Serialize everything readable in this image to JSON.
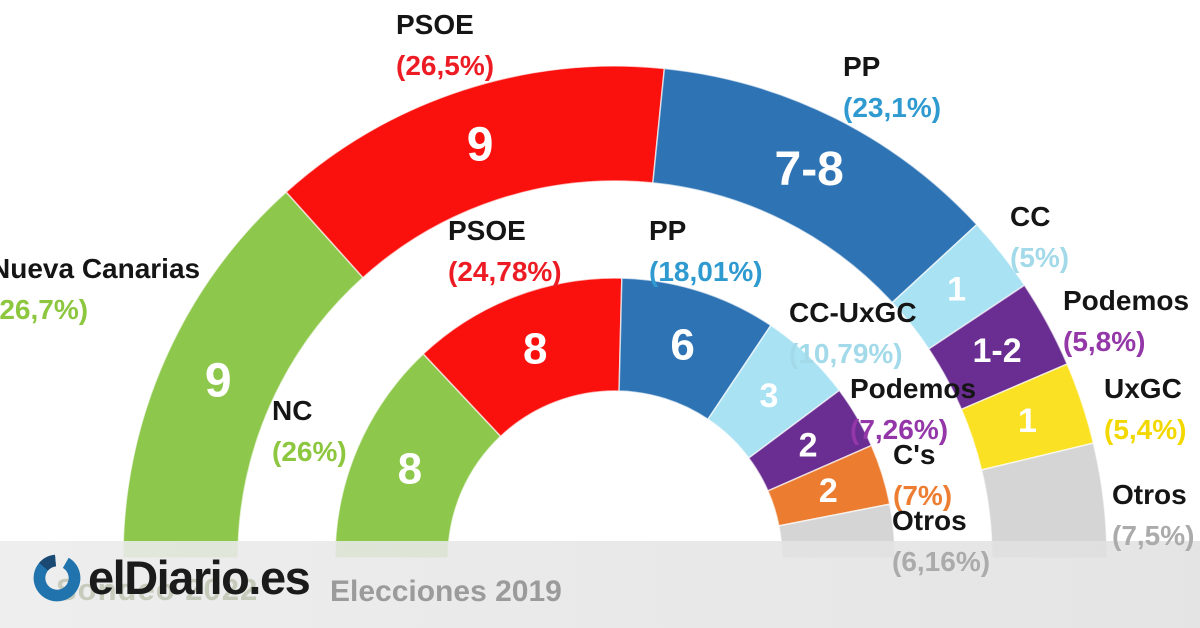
{
  "branding": {
    "logo_text": "elDiario.es",
    "logo_blue": "#2173AE",
    "logo_dark_blue": "#1A4A74",
    "watermark_text": "Sondeo 2022",
    "caption": "Elecciones 2019"
  },
  "chart_data": {
    "type": "pie",
    "subtype": "double_hemicycle_donut",
    "description_visible_text": "Two concentric half-donut rings; outer ring poll result, inner ring Elecciones 2019 result; labels show party, vote share and seats",
    "total_pct": 100,
    "rings": [
      {
        "id": "outer",
        "segments": [
          {
            "label": "Nueva Canarias",
            "pct": 26.7,
            "pct_label": "(26,7%)",
            "seats": "9",
            "color": "#8DC74B",
            "text_color": "#8DC63F"
          },
          {
            "label": "PSOE",
            "pct": 26.5,
            "pct_label": "(26,5%)",
            "seats": "9",
            "color": "#FA100C",
            "text_color": "#ED1C24"
          },
          {
            "label": "PP",
            "pct": 23.1,
            "pct_label": "(23,1%)",
            "seats": "7-8",
            "color": "#2E74B5",
            "text_color": "#2E9AD0"
          },
          {
            "label": "CC",
            "pct": 5.0,
            "pct_label": "(5%)",
            "seats": "1",
            "color": "#A9E2F3",
            "text_color": "#A3DAEA"
          },
          {
            "label": "Podemos",
            "pct": 5.8,
            "pct_label": "(5,8%)",
            "seats": "1-2",
            "color": "#6A2D91",
            "text_color": "#9437A8"
          },
          {
            "label": "UxGC",
            "pct": 5.4,
            "pct_label": "(5,4%)",
            "seats": "1",
            "color": "#FBE124",
            "text_color": "#F3D800"
          },
          {
            "label": "Otros",
            "pct": 7.5,
            "pct_label": "(7,5%)",
            "seats": "",
            "color": "#D5D5D5",
            "text_color": "#ABABAB"
          }
        ]
      },
      {
        "id": "inner",
        "segments": [
          {
            "label": "NC",
            "pct": 26.0,
            "pct_label": "(26%)",
            "seats": "8",
            "color": "#8DC74B",
            "text_color": "#8DC63F"
          },
          {
            "label": "PSOE",
            "pct": 24.78,
            "pct_label": "(24,78%)",
            "seats": "8",
            "color": "#FA100C",
            "text_color": "#ED1C24"
          },
          {
            "label": "PP",
            "pct": 18.01,
            "pct_label": "(18,01%)",
            "seats": "6",
            "color": "#2E74B5",
            "text_color": "#2E9AD0"
          },
          {
            "label": "CC-UxGC",
            "pct": 10.79,
            "pct_label": "(10,79%)",
            "seats": "3",
            "color": "#A9E2F3",
            "text_color": "#A3DAEA"
          },
          {
            "label": "Podemos",
            "pct": 7.26,
            "pct_label": "(7,26%)",
            "seats": "2",
            "color": "#6A2D91",
            "text_color": "#9437A8"
          },
          {
            "label": "C's",
            "pct": 7.0,
            "pct_label": "(7%)",
            "seats": "2",
            "color": "#EC7C30",
            "text_color": "#ED7D31"
          },
          {
            "label": "Otros",
            "pct": 6.16,
            "pct_label": "(6,16%)",
            "seats": "",
            "color": "#D5D5D5",
            "text_color": "#ABABAB"
          }
        ]
      }
    ]
  }
}
